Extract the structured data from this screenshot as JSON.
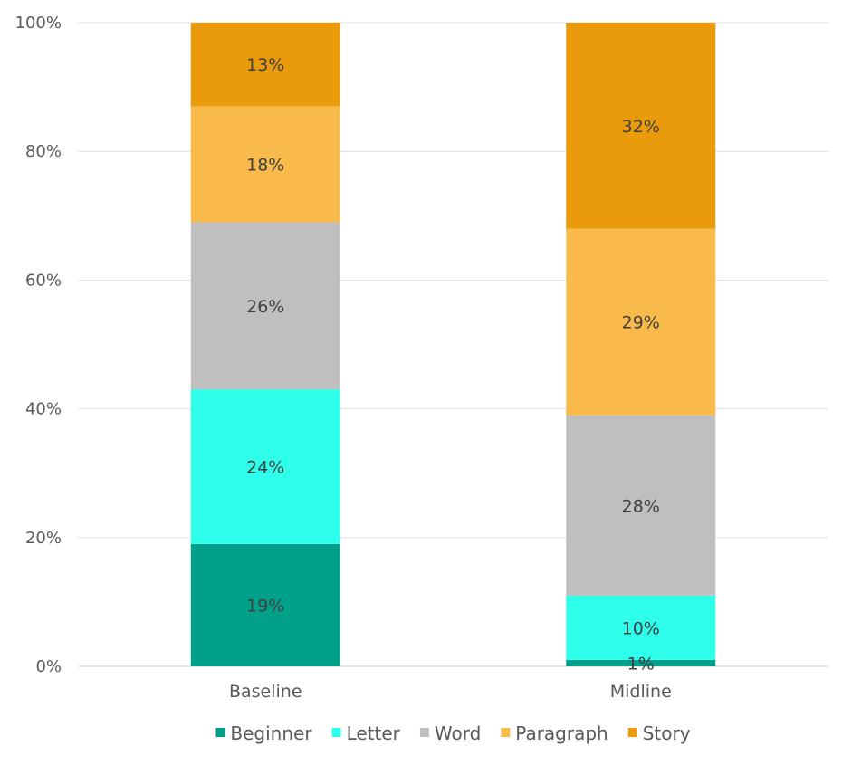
{
  "chart_data": {
    "type": "bar",
    "stacked": true,
    "percent_stacked": true,
    "categories": [
      "Baseline",
      "Midline"
    ],
    "series": [
      {
        "name": "Beginner",
        "values": [
          19,
          1
        ],
        "labels": [
          "19%",
          "1%"
        ],
        "color": "#00A08A"
      },
      {
        "name": "Letter",
        "values": [
          24,
          10
        ],
        "labels": [
          "24%",
          "10%"
        ],
        "color": "#2EFFEB"
      },
      {
        "name": "Word",
        "values": [
          26,
          28
        ],
        "labels": [
          "26%",
          "28%"
        ],
        "color": "#BFBFBF"
      },
      {
        "name": "Paragraph",
        "values": [
          18,
          29
        ],
        "labels": [
          "18%",
          "29%"
        ],
        "color": "#F7BA4B"
      },
      {
        "name": "Story",
        "values": [
          13,
          32
        ],
        "labels": [
          "13%",
          "32%"
        ],
        "color": "#EA9B0C"
      }
    ],
    "yticks": [
      "0%",
      "20%",
      "40%",
      "60%",
      "80%",
      "100%"
    ],
    "ylim": [
      0,
      100
    ],
    "grid": true,
    "legend_position": "bottom",
    "title": "",
    "xlabel": "",
    "ylabel": ""
  }
}
